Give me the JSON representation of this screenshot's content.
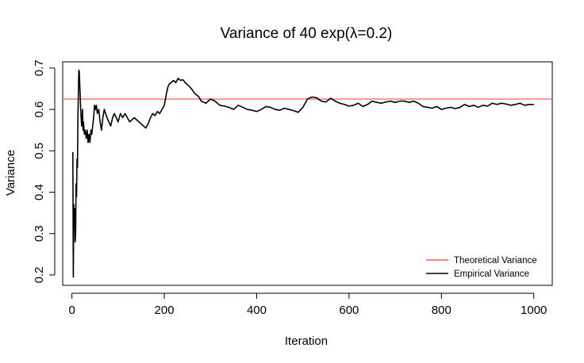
{
  "chart_data": {
    "type": "line",
    "title": "Variance of 40 exp(λ=0.2)",
    "xlabel": "Iteration",
    "ylabel": "Variance",
    "xlim": [
      -20,
      1040
    ],
    "ylim": [
      0.175,
      0.715
    ],
    "xticks": [
      0,
      200,
      400,
      600,
      800,
      1000
    ],
    "yticks": [
      0.2,
      0.3,
      0.4,
      0.5,
      0.6,
      0.7
    ],
    "xtick_labels": [
      "0",
      "200",
      "400",
      "600",
      "800",
      "1000"
    ],
    "ytick_labels": [
      "0.2",
      "0.3",
      "0.4",
      "0.5",
      "0.6",
      "0.7"
    ],
    "grid": false,
    "legend_position": "bottom-right",
    "colors": {
      "theoretical": "#ff5a5a",
      "empirical": "#000000"
    },
    "series": [
      {
        "name": "Theoretical Variance",
        "kind": "hline",
        "y": 0.625
      },
      {
        "name": "Empirical Variance",
        "kind": "line",
        "x": [
          2,
          3,
          4,
          5,
          6,
          7,
          8,
          9,
          10,
          11,
          12,
          13,
          14,
          15,
          16,
          17,
          18,
          19,
          20,
          21,
          22,
          23,
          24,
          25,
          27,
          29,
          31,
          33,
          35,
          37,
          39,
          41,
          43,
          45,
          47,
          49,
          51,
          53,
          55,
          58,
          61,
          64,
          67,
          70,
          73,
          76,
          80,
          84,
          88,
          92,
          96,
          100,
          105,
          110,
          115,
          120,
          125,
          130,
          135,
          140,
          145,
          150,
          155,
          160,
          165,
          170,
          175,
          180,
          185,
          190,
          195,
          200,
          205,
          208,
          210,
          215,
          220,
          225,
          230,
          235,
          240,
          245,
          250,
          255,
          260,
          265,
          270,
          275,
          280,
          290,
          300,
          310,
          320,
          330,
          340,
          350,
          360,
          370,
          380,
          390,
          400,
          410,
          420,
          430,
          440,
          450,
          460,
          470,
          480,
          490,
          500,
          510,
          520,
          530,
          540,
          550,
          560,
          570,
          580,
          590,
          600,
          610,
          620,
          630,
          640,
          650,
          660,
          670,
          680,
          690,
          700,
          710,
          720,
          730,
          740,
          750,
          760,
          770,
          780,
          790,
          800,
          810,
          820,
          830,
          840,
          850,
          860,
          870,
          880,
          890,
          900,
          910,
          920,
          930,
          940,
          950,
          960,
          970,
          980,
          990,
          1000
        ],
        "y": [
          0.497,
          0.195,
          0.37,
          0.32,
          0.36,
          0.28,
          0.3,
          0.42,
          0.39,
          0.48,
          0.46,
          0.58,
          0.64,
          0.695,
          0.69,
          0.66,
          0.63,
          0.6,
          0.58,
          0.56,
          0.57,
          0.6,
          0.55,
          0.57,
          0.54,
          0.55,
          0.53,
          0.55,
          0.52,
          0.54,
          0.52,
          0.55,
          0.54,
          0.56,
          0.58,
          0.61,
          0.6,
          0.61,
          0.59,
          0.6,
          0.57,
          0.55,
          0.58,
          0.6,
          0.59,
          0.58,
          0.57,
          0.56,
          0.58,
          0.59,
          0.58,
          0.57,
          0.59,
          0.58,
          0.59,
          0.58,
          0.57,
          0.575,
          0.58,
          0.575,
          0.57,
          0.565,
          0.56,
          0.555,
          0.565,
          0.58,
          0.59,
          0.585,
          0.595,
          0.59,
          0.6,
          0.61,
          0.64,
          0.655,
          0.66,
          0.665,
          0.67,
          0.665,
          0.675,
          0.67,
          0.672,
          0.665,
          0.66,
          0.655,
          0.648,
          0.64,
          0.635,
          0.63,
          0.62,
          0.615,
          0.625,
          0.62,
          0.61,
          0.608,
          0.605,
          0.6,
          0.61,
          0.605,
          0.6,
          0.598,
          0.595,
          0.6,
          0.607,
          0.605,
          0.6,
          0.598,
          0.603,
          0.6,
          0.597,
          0.593,
          0.605,
          0.625,
          0.63,
          0.628,
          0.62,
          0.618,
          0.627,
          0.62,
          0.615,
          0.612,
          0.608,
          0.61,
          0.615,
          0.607,
          0.612,
          0.62,
          0.617,
          0.615,
          0.618,
          0.62,
          0.617,
          0.62,
          0.62,
          0.617,
          0.62,
          0.615,
          0.607,
          0.605,
          0.603,
          0.607,
          0.6,
          0.603,
          0.605,
          0.602,
          0.605,
          0.612,
          0.607,
          0.61,
          0.605,
          0.61,
          0.608,
          0.615,
          0.612,
          0.615,
          0.613,
          0.61,
          0.612,
          0.615,
          0.61,
          0.612,
          0.612
        ]
      }
    ]
  }
}
